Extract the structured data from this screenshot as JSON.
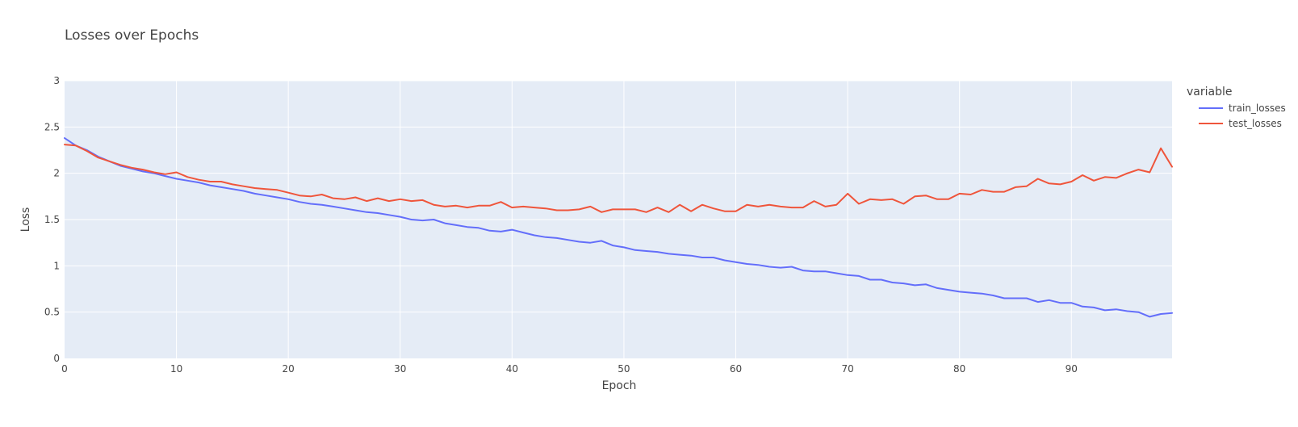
{
  "chart_data": {
    "type": "line",
    "title": "Losses over Epochs",
    "xlabel": "Epoch",
    "ylabel": "Loss",
    "xlim": [
      0,
      99
    ],
    "ylim": [
      0,
      3
    ],
    "xticks": [
      0,
      10,
      20,
      30,
      40,
      50,
      60,
      70,
      80,
      90
    ],
    "yticks": [
      0,
      0.5,
      1,
      1.5,
      2,
      2.5,
      3
    ],
    "ytick_labels": [
      "0",
      "0.5",
      "1",
      "1.5",
      "2",
      "2.5",
      "3"
    ],
    "grid": true,
    "legend": {
      "title": "variable",
      "placement": "right"
    },
    "colors": {
      "plot_bg": "#e5ecf6",
      "grid": "#ffffff"
    },
    "series": [
      {
        "name": "train_losses",
        "color": "#636efa",
        "values": [
          2.38,
          2.3,
          2.25,
          2.18,
          2.13,
          2.08,
          2.05,
          2.02,
          2.0,
          1.97,
          1.94,
          1.92,
          1.9,
          1.87,
          1.85,
          1.83,
          1.81,
          1.78,
          1.76,
          1.74,
          1.72,
          1.69,
          1.67,
          1.66,
          1.64,
          1.62,
          1.6,
          1.58,
          1.57,
          1.55,
          1.53,
          1.5,
          1.49,
          1.5,
          1.46,
          1.44,
          1.42,
          1.41,
          1.38,
          1.37,
          1.39,
          1.36,
          1.33,
          1.31,
          1.3,
          1.28,
          1.26,
          1.25,
          1.27,
          1.22,
          1.2,
          1.17,
          1.16,
          1.15,
          1.13,
          1.12,
          1.11,
          1.09,
          1.09,
          1.06,
          1.04,
          1.02,
          1.01,
          0.99,
          0.98,
          0.99,
          0.95,
          0.94,
          0.94,
          0.92,
          0.9,
          0.89,
          0.85,
          0.85,
          0.82,
          0.81,
          0.79,
          0.8,
          0.76,
          0.74,
          0.72,
          0.71,
          0.7,
          0.68,
          0.65,
          0.65,
          0.65,
          0.61,
          0.63,
          0.6,
          0.6,
          0.56,
          0.55,
          0.52,
          0.53,
          0.51,
          0.5,
          0.45,
          0.48,
          0.49
        ]
      },
      {
        "name": "test_losses",
        "color": "#ef553b",
        "values": [
          2.31,
          2.3,
          2.24,
          2.17,
          2.13,
          2.09,
          2.06,
          2.04,
          2.01,
          1.99,
          2.01,
          1.96,
          1.93,
          1.91,
          1.91,
          1.88,
          1.86,
          1.84,
          1.83,
          1.82,
          1.79,
          1.76,
          1.75,
          1.77,
          1.73,
          1.72,
          1.74,
          1.7,
          1.73,
          1.7,
          1.72,
          1.7,
          1.71,
          1.66,
          1.64,
          1.65,
          1.63,
          1.65,
          1.65,
          1.69,
          1.63,
          1.64,
          1.63,
          1.62,
          1.6,
          1.6,
          1.61,
          1.64,
          1.58,
          1.61,
          1.61,
          1.61,
          1.58,
          1.63,
          1.58,
          1.66,
          1.59,
          1.66,
          1.62,
          1.59,
          1.59,
          1.66,
          1.64,
          1.66,
          1.64,
          1.63,
          1.63,
          1.7,
          1.64,
          1.66,
          1.78,
          1.67,
          1.72,
          1.71,
          1.72,
          1.67,
          1.75,
          1.76,
          1.72,
          1.72,
          1.78,
          1.77,
          1.82,
          1.8,
          1.8,
          1.85,
          1.86,
          1.94,
          1.89,
          1.88,
          1.91,
          1.98,
          1.92,
          1.96,
          1.95,
          2.0,
          2.04,
          2.01,
          2.27,
          2.07
        ]
      }
    ]
  }
}
